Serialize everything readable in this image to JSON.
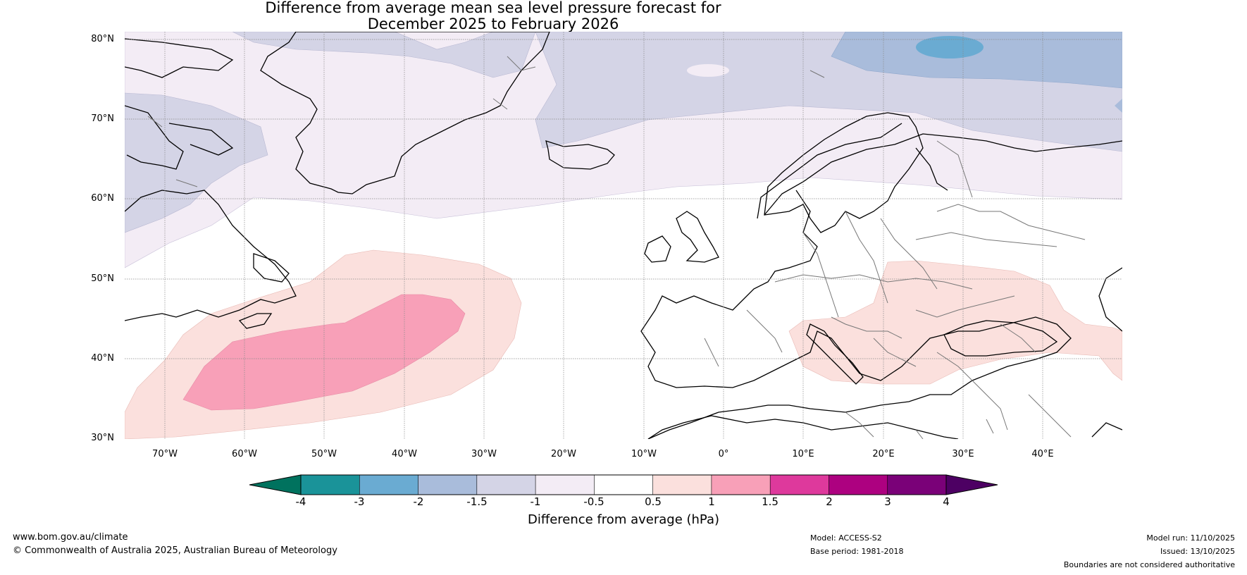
{
  "title": {
    "line1": "Difference from average mean sea level pressure forecast for",
    "line2": "December 2025 to February 2026"
  },
  "map": {
    "lat_labels": [
      "80°N",
      "70°N",
      "60°N",
      "50°N",
      "40°N",
      "30°N"
    ],
    "lon_labels": [
      "70°W",
      "60°W",
      "50°W",
      "40°W",
      "30°W",
      "20°W",
      "10°W",
      "0°",
      "10°E",
      "20°E",
      "30°E",
      "40°E"
    ],
    "extent": {
      "lon_min": -75,
      "lon_max": 50,
      "lat_min": 30,
      "lat_max": 80
    },
    "anomaly_regions": [
      {
        "name": "north-atlantic-positive",
        "category": "0.5 to 1",
        "color": "#fbe0dd"
      },
      {
        "name": "north-atlantic-positive-core",
        "category": "1 to 1.5",
        "color": "#f8a0b8"
      },
      {
        "name": "eastern-europe-positive",
        "category": "0.5 to 1",
        "color": "#fbe0dd"
      },
      {
        "name": "arctic-negative",
        "category": "-1 to -0.5",
        "color": "#f3ecf5"
      },
      {
        "name": "arctic-negative-strong",
        "category": "-1.5 to -1",
        "color": "#d4d4e6"
      },
      {
        "name": "svalbard-negative",
        "category": "-2 to -1.5",
        "color": "#a9bcdb"
      },
      {
        "name": "svalbard-negative-core",
        "category": "-3 to -2",
        "color": "#6aabd2"
      }
    ]
  },
  "colorbar": {
    "label": "Difference from average (hPa)",
    "ticks": [
      "-4",
      "-3",
      "-2",
      "-1.5",
      "-1",
      "-0.5",
      "0.5",
      "1",
      "1.5",
      "2",
      "3",
      "4"
    ],
    "colors": {
      "under": "#00725e",
      "bins": [
        "#1a9399",
        "#6aabd2",
        "#a9bcdb",
        "#d4d4e6",
        "#f3ecf5",
        "#ffffff",
        "#fbe0dd",
        "#f8a0b8",
        "#de399c",
        "#ad0180",
        "#7a0178"
      ],
      "over": "#4d0063"
    }
  },
  "footer": {
    "website": "www.bom.gov.au/climate",
    "copyright": "© Commonwealth of Australia 2025, Australian Bureau of Meteorology",
    "model": "Model: ACCESS-S2",
    "base_period": "Base period: 1981-2018",
    "model_run": "Model run: 11/10/2025",
    "issued": "Issued: 13/10/2025",
    "disclaimer": "Boundaries are not considered authoritative"
  }
}
